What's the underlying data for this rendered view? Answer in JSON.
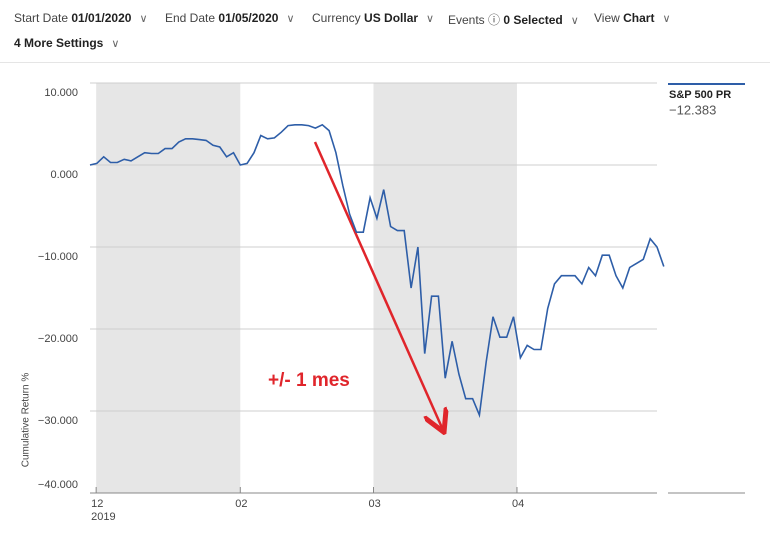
{
  "controls": [
    {
      "label": "Start Date",
      "value": "01/01/2020"
    },
    {
      "label": "End Date",
      "value": "01/05/2020"
    },
    {
      "label": "Currency",
      "value": "US Dollar"
    },
    {
      "label": "Events",
      "value": "0 Selected"
    },
    {
      "label": "View",
      "value": "Chart"
    },
    {
      "label": "4 More Settings"
    }
  ],
  "chart_data": {
    "type": "line",
    "y_label": "Cumulative Return %",
    "annotation": "+/- 1 mes",
    "x_year_label": "2019",
    "xlim": [
      0,
      83
    ],
    "xticks": [
      {
        "value": 0.9,
        "label": "12"
      },
      {
        "value": 22,
        "label": "02"
      },
      {
        "value": 41.5,
        "label": "03"
      },
      {
        "value": 62.5,
        "label": "04"
      }
    ],
    "ylim": [
      -40,
      10
    ],
    "yticks": [
      {
        "value": 10,
        "label": "10.000"
      },
      {
        "value": 0,
        "label": "0.000"
      },
      {
        "value": -10,
        "label": "−10.000"
      },
      {
        "value": -20,
        "label": "−20.000"
      },
      {
        "value": -30,
        "label": "−30.000"
      },
      {
        "value": -40,
        "label": "−40.000"
      }
    ],
    "grid": true,
    "series": [
      {
        "name": "S&P 500 PR",
        "color": "#2e5ea8",
        "last_label": "−12.383",
        "values": [
          0,
          0.2,
          1,
          0.3,
          0.3,
          0.7,
          0.5,
          1,
          1.5,
          1.4,
          1.4,
          2,
          2,
          2.8,
          3.2,
          3.2,
          3.1,
          3,
          2.4,
          2.2,
          1,
          1.5,
          0,
          0.2,
          1.5,
          3.6,
          3.2,
          3.3,
          4,
          4.8,
          4.9,
          4.9,
          4.8,
          4.5,
          4.9,
          4.2,
          1.5,
          -2.5,
          -6,
          -8.2,
          -8.2,
          -4,
          -6.5,
          -3,
          -7.5,
          -8,
          -8,
          -15,
          -10,
          -23,
          -16,
          -16,
          -26,
          -21.5,
          -25.5,
          -28.5,
          -28.5,
          -30.5,
          -24,
          -18.5,
          -21,
          -21,
          -18.5,
          -23.5,
          -22,
          -22.5,
          -22.5,
          -17.5,
          -14.5,
          -13.5,
          -13.5,
          -13.5,
          -14.5,
          -12.5,
          -13.5,
          -11,
          -11,
          -13.5,
          -15,
          -12.5,
          -12,
          -11.5,
          -9,
          -10,
          -12.383
        ]
      }
    ]
  }
}
